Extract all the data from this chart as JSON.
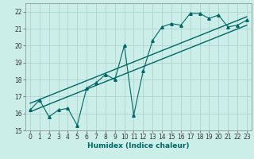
{
  "title": "",
  "xlabel": "Humidex (Indice chaleur)",
  "ylabel": "",
  "bg_color": "#cceee8",
  "grid_color": "#aacccc",
  "line_color": "#006666",
  "xlim": [
    -0.5,
    23.5
  ],
  "ylim": [
    15,
    22.5
  ],
  "x_ticks": [
    0,
    1,
    2,
    3,
    4,
    5,
    6,
    7,
    8,
    9,
    10,
    11,
    12,
    13,
    14,
    15,
    16,
    17,
    18,
    19,
    20,
    21,
    22,
    23
  ],
  "y_ticks": [
    15,
    16,
    17,
    18,
    19,
    20,
    21,
    22
  ],
  "scatter_x": [
    0,
    1,
    2,
    3,
    4,
    5,
    6,
    7,
    8,
    9,
    10,
    11,
    12,
    13,
    14,
    15,
    16,
    17,
    18,
    19,
    20,
    21,
    22,
    23
  ],
  "scatter_y": [
    16.2,
    16.8,
    15.8,
    16.2,
    16.3,
    15.3,
    17.5,
    17.8,
    18.3,
    18.0,
    20.0,
    15.9,
    18.5,
    20.3,
    21.1,
    21.3,
    21.2,
    21.9,
    21.9,
    21.6,
    21.8,
    21.1,
    21.2,
    21.5
  ],
  "line1_x": [
    0,
    23
  ],
  "line1_y": [
    16.1,
    21.2
  ],
  "line2_x": [
    0,
    23
  ],
  "line2_y": [
    16.6,
    21.7
  ],
  "tick_fontsize": 5.5,
  "xlabel_fontsize": 6.5
}
